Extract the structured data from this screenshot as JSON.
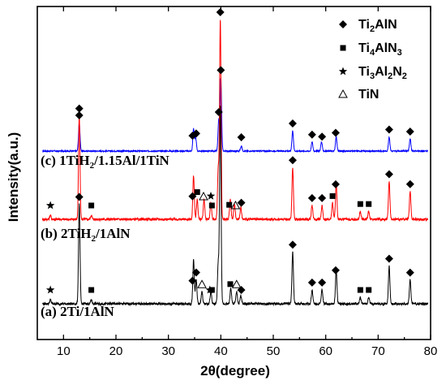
{
  "chart_data": {
    "type": "line",
    "xlabel": "2θ(degree)",
    "ylabel": "Intensity(a.u.)",
    "xlim": [
      5,
      80
    ],
    "x_ticks": [
      10,
      20,
      30,
      40,
      50,
      60,
      70,
      80
    ],
    "legend_position": "top-right",
    "legend": [
      {
        "marker": "diamond",
        "label": "Ti₂AlN",
        "parts": [
          "Ti",
          "2",
          "AlN"
        ]
      },
      {
        "marker": "square",
        "label": "Ti₄AlN₃",
        "parts": [
          "Ti",
          "4",
          "AlN",
          "3"
        ]
      },
      {
        "marker": "star",
        "label": "Ti₃Al₂N₂",
        "parts": [
          "Ti",
          "3",
          "Al",
          "2",
          "N",
          "2"
        ]
      },
      {
        "marker": "triangle",
        "label": "TiN",
        "parts": [
          "TiN"
        ]
      }
    ],
    "series": [
      {
        "name": "(c) 1TiH₂/1.15Al/1TiN",
        "label_parts": [
          "(c) 1TiH",
          "2",
          "/1.15Al/1TiN"
        ],
        "color": "#0000ff",
        "baseline": 0,
        "peaks": [
          {
            "x": 13.0,
            "h": 0.28
          },
          {
            "x": 34.8,
            "h": 0.22
          },
          {
            "x": 35.2,
            "h": 0.13
          },
          {
            "x": 39.6,
            "h": 0.3
          },
          {
            "x": 40.0,
            "h": 0.72
          },
          {
            "x": 43.9,
            "h": 0.05
          },
          {
            "x": 53.7,
            "h": 0.2
          },
          {
            "x": 57.4,
            "h": 0.09
          },
          {
            "x": 59.2,
            "h": 0.09
          },
          {
            "x": 62.0,
            "h": 0.14
          },
          {
            "x": 72.1,
            "h": 0.14
          },
          {
            "x": 76.1,
            "h": 0.12
          }
        ],
        "markers": [
          {
            "x": 13.0,
            "type": "diamond"
          },
          {
            "x": 34.6,
            "type": "diamond"
          },
          {
            "x": 35.3,
            "type": "diamond"
          },
          {
            "x": 40.0,
            "type": "diamond"
          },
          {
            "x": 39.6,
            "type": "diamond"
          },
          {
            "x": 43.9,
            "type": "diamond"
          },
          {
            "x": 53.7,
            "type": "diamond"
          },
          {
            "x": 57.4,
            "type": "diamond"
          },
          {
            "x": 59.3,
            "type": "diamond"
          },
          {
            "x": 61.9,
            "type": "diamond"
          },
          {
            "x": 72.1,
            "type": "diamond"
          },
          {
            "x": 76.1,
            "type": "diamond"
          }
        ]
      },
      {
        "name": "(b) 2TiH₂/1AlN",
        "label_parts": [
          "(b) 2TiH",
          "2",
          "/1AlN"
        ],
        "color": "#ff0000",
        "baseline": 0,
        "peaks": [
          {
            "x": 7.5,
            "h": 0.02
          },
          {
            "x": 13.0,
            "h": 0.52
          },
          {
            "x": 15.3,
            "h": 0.02
          },
          {
            "x": 34.8,
            "h": 0.22
          },
          {
            "x": 35.5,
            "h": 0.1
          },
          {
            "x": 36.8,
            "h": 0.1
          },
          {
            "x": 38.1,
            "h": 0.08
          },
          {
            "x": 39.5,
            "h": 0.25
          },
          {
            "x": 39.9,
            "h": 1.0
          },
          {
            "x": 41.8,
            "h": 0.1
          },
          {
            "x": 42.6,
            "h": 0.08
          },
          {
            "x": 43.8,
            "h": 0.06
          },
          {
            "x": 53.7,
            "h": 0.26
          },
          {
            "x": 57.4,
            "h": 0.07
          },
          {
            "x": 59.3,
            "h": 0.07
          },
          {
            "x": 61.3,
            "h": 0.08
          },
          {
            "x": 62.0,
            "h": 0.18
          },
          {
            "x": 66.6,
            "h": 0.04
          },
          {
            "x": 68.2,
            "h": 0.04
          },
          {
            "x": 72.1,
            "h": 0.19
          },
          {
            "x": 76.1,
            "h": 0.14
          }
        ],
        "markers": [
          {
            "x": 7.5,
            "type": "star"
          },
          {
            "x": 13.0,
            "type": "diamond"
          },
          {
            "x": 15.3,
            "type": "square"
          },
          {
            "x": 34.6,
            "type": "diamond"
          },
          {
            "x": 35.5,
            "type": "square"
          },
          {
            "x": 36.7,
            "type": "triangle"
          },
          {
            "x": 38.1,
            "type": "star"
          },
          {
            "x": 38.3,
            "type": "square"
          },
          {
            "x": 39.9,
            "type": "diamond"
          },
          {
            "x": 41.6,
            "type": "square"
          },
          {
            "x": 42.8,
            "type": "triangle"
          },
          {
            "x": 43.9,
            "type": "diamond"
          },
          {
            "x": 53.7,
            "type": "diamond"
          },
          {
            "x": 57.4,
            "type": "diamond"
          },
          {
            "x": 59.3,
            "type": "diamond"
          },
          {
            "x": 61.3,
            "type": "square"
          },
          {
            "x": 61.9,
            "type": "diamond"
          },
          {
            "x": 66.6,
            "type": "square"
          },
          {
            "x": 68.2,
            "type": "square"
          },
          {
            "x": 72.1,
            "type": "diamond"
          },
          {
            "x": 76.1,
            "type": "diamond"
          }
        ]
      },
      {
        "name": "(a) 2Ti/1AlN",
        "label_parts": [
          "(a) 2Ti/1AlN"
        ],
        "color": "#000000",
        "baseline": 0,
        "peaks": [
          {
            "x": 7.5,
            "h": 0.02
          },
          {
            "x": 13.0,
            "h": 0.5
          },
          {
            "x": 15.3,
            "h": 0.02
          },
          {
            "x": 34.8,
            "h": 0.22
          },
          {
            "x": 35.3,
            "h": 0.12
          },
          {
            "x": 36.4,
            "h": 0.06
          },
          {
            "x": 38.1,
            "h": 0.06
          },
          {
            "x": 39.5,
            "h": 0.2
          },
          {
            "x": 39.9,
            "h": 1.0
          },
          {
            "x": 41.9,
            "h": 0.08
          },
          {
            "x": 43.0,
            "h": 0.06
          },
          {
            "x": 43.8,
            "h": 0.04
          },
          {
            "x": 53.7,
            "h": 0.26
          },
          {
            "x": 57.4,
            "h": 0.07
          },
          {
            "x": 59.3,
            "h": 0.07
          },
          {
            "x": 62.0,
            "h": 0.17
          },
          {
            "x": 66.6,
            "h": 0.03
          },
          {
            "x": 68.2,
            "h": 0.03
          },
          {
            "x": 72.1,
            "h": 0.19
          },
          {
            "x": 76.1,
            "h": 0.12
          }
        ],
        "markers": [
          {
            "x": 7.5,
            "type": "star"
          },
          {
            "x": 13.0,
            "type": "diamond"
          },
          {
            "x": 15.3,
            "type": "square"
          },
          {
            "x": 34.6,
            "type": "diamond"
          },
          {
            "x": 35.3,
            "type": "diamond"
          },
          {
            "x": 36.4,
            "type": "triangle"
          },
          {
            "x": 37.9,
            "type": "star"
          },
          {
            "x": 38.3,
            "type": "square"
          },
          {
            "x": 41.8,
            "type": "square"
          },
          {
            "x": 43.0,
            "type": "triangle"
          },
          {
            "x": 43.9,
            "type": "diamond"
          },
          {
            "x": 53.7,
            "type": "diamond"
          },
          {
            "x": 57.4,
            "type": "diamond"
          },
          {
            "x": 59.3,
            "type": "diamond"
          },
          {
            "x": 61.9,
            "type": "diamond"
          },
          {
            "x": 66.6,
            "type": "square"
          },
          {
            "x": 68.2,
            "type": "square"
          },
          {
            "x": 72.1,
            "type": "diamond"
          },
          {
            "x": 76.1,
            "type": "diamond"
          }
        ]
      }
    ]
  }
}
